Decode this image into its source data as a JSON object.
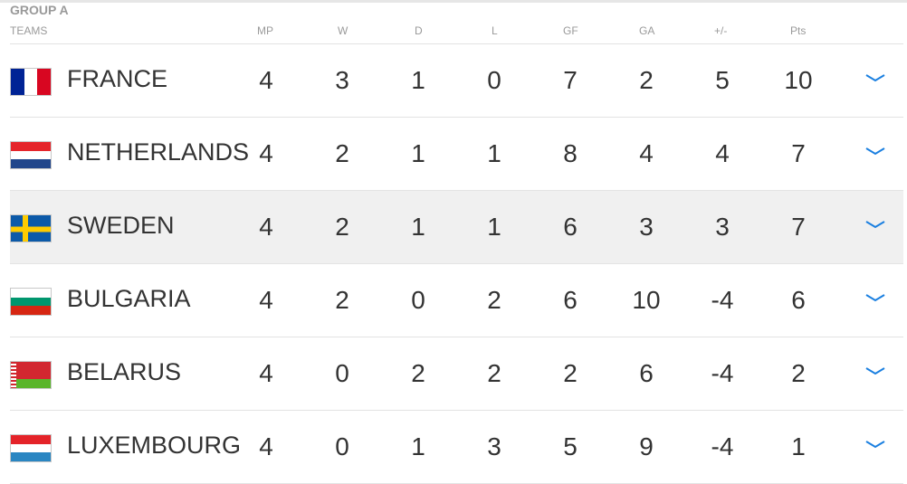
{
  "group_title": "GROUP A",
  "headers": {
    "teams": "TEAMS",
    "mp": "MP",
    "w": "W",
    "d": "D",
    "l": "L",
    "gf": "GF",
    "ga": "GA",
    "gd": "+/-",
    "pts": "Pts"
  },
  "accent_color": "#1a7fe0",
  "rows": [
    {
      "team": "FRANCE",
      "mp": "4",
      "w": "3",
      "d": "1",
      "l": "0",
      "gf": "7",
      "ga": "2",
      "gd": "5",
      "pts": "10",
      "flag": "france"
    },
    {
      "team": "NETHERLANDS",
      "mp": "4",
      "w": "2",
      "d": "1",
      "l": "1",
      "gf": "8",
      "ga": "4",
      "gd": "4",
      "pts": "7",
      "flag": "netherlands"
    },
    {
      "team": "SWEDEN",
      "mp": "4",
      "w": "2",
      "d": "1",
      "l": "1",
      "gf": "6",
      "ga": "3",
      "gd": "3",
      "pts": "7",
      "flag": "sweden",
      "highlighted": true
    },
    {
      "team": "BULGARIA",
      "mp": "4",
      "w": "2",
      "d": "0",
      "l": "2",
      "gf": "6",
      "ga": "10",
      "gd": "-4",
      "pts": "6",
      "flag": "bulgaria"
    },
    {
      "team": "BELARUS",
      "mp": "4",
      "w": "0",
      "d": "2",
      "l": "2",
      "gf": "2",
      "ga": "6",
      "gd": "-4",
      "pts": "2",
      "flag": "belarus"
    },
    {
      "team": "LUXEMBOURG",
      "mp": "4",
      "w": "0",
      "d": "1",
      "l": "3",
      "gf": "5",
      "ga": "9",
      "gd": "-4",
      "pts": "1",
      "flag": "luxembourg"
    }
  ]
}
